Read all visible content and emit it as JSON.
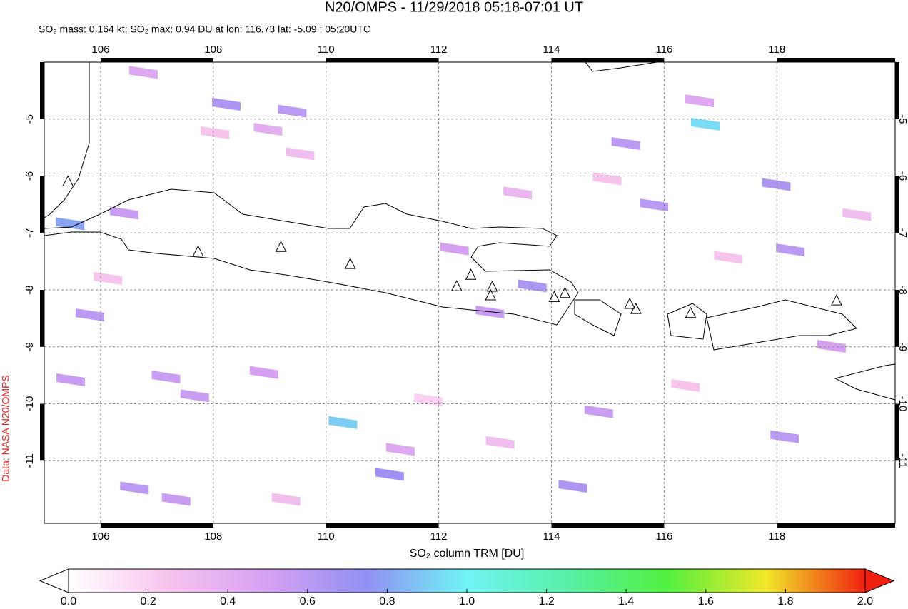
{
  "chart_data": {
    "type": "map",
    "title": "N20/OMPS - 11/29/2018 05:18-07:01 UT",
    "subtitle": "SO₂ mass: 0.164 kt; SO₂ max: 0.94 DU at lon: 116.73 lat: -5.09 ; 05:20UTC",
    "credit": "Data: NASA N20/OMPS",
    "xlim": [
      105,
      120.1
    ],
    "ylim": [
      -12.1,
      -4
    ],
    "xticks": [
      106,
      108,
      110,
      112,
      114,
      116,
      118
    ],
    "yticks": [
      -5,
      -6,
      -7,
      -8,
      -9,
      -10,
      -11
    ],
    "grid": true,
    "pixels": {
      "lon": [
        108.23,
        109.4,
        116.73,
        110.3,
        111.13,
        113.66,
        106.42,
        105.81,
        107.16,
        107.67,
        108.9,
        106.6,
        107.34,
        114.38,
        114.84,
        115.32,
        115.82,
        117.99,
        118.24,
        118.14,
        105.46,
        112.28,
        112.91,
        105.47,
        106.76,
        108.97,
        113.4,
        116.63,
        118.97,
        111.32,
        108.03,
        109.54,
        111.82,
        116.38,
        119.42,
        106.13,
        114.99,
        113.09,
        117.14,
        109.29
      ],
      "lat": [
        -4.74,
        -4.86,
        -5.09,
        -10.33,
        -11.24,
        -7.93,
        -6.65,
        -8.44,
        -9.53,
        -9.86,
        -9.45,
        -11.48,
        -11.68,
        -11.45,
        -10.14,
        -5.43,
        -6.51,
        -6.15,
        -7.3,
        -10.58,
        -6.84,
        -7.28,
        -8.39,
        -9.58,
        -4.18,
        -5.18,
        -6.3,
        -4.68,
        -8.99,
        -10.8,
        -5.24,
        -5.61,
        -9.93,
        -9.68,
        -6.68,
        -7.8,
        -6.05,
        -10.68,
        -7.43,
        -11.68
      ],
      "values": [
        0.65,
        0.6,
        0.94,
        0.9,
        0.7,
        0.65,
        0.55,
        0.6,
        0.55,
        0.55,
        0.5,
        0.6,
        0.55,
        0.65,
        0.55,
        0.6,
        0.6,
        0.65,
        0.6,
        0.6,
        0.8,
        0.5,
        0.55,
        0.55,
        0.45,
        0.4,
        0.35,
        0.45,
        0.5,
        0.45,
        0.25,
        0.3,
        0.2,
        0.25,
        0.3,
        0.25,
        0.25,
        0.3,
        0.25,
        0.3
      ]
    },
    "volcanoes": {
      "lon": [
        107.73,
        109.2,
        110.43,
        112.32,
        112.57,
        112.95,
        112.92,
        114.05,
        114.24,
        115.39,
        115.5,
        116.47,
        119.06,
        105.42
      ],
      "lat": [
        -7.33,
        -7.25,
        -7.55,
        -7.94,
        -7.74,
        -7.95,
        -8.1,
        -8.13,
        -8.06,
        -8.25,
        -8.34,
        -8.41,
        -8.19,
        -6.1
      ]
    },
    "colorbar": {
      "label": "SO₂ column TRM [DU]",
      "clim": [
        0,
        2
      ],
      "colormap": [
        "#ffffff",
        "#f7c4ee",
        "#d6a0f2",
        "#9090f2",
        "#70f4f4",
        "#58f0a8",
        "#50f040",
        "#f0e828",
        "#f02010"
      ],
      "ticks": [
        {
          "value": 0,
          "label": "0.0"
        },
        {
          "value": 0.2,
          "label": "0.2"
        },
        {
          "value": 0.4,
          "label": "0.4"
        },
        {
          "value": 0.6,
          "label": "0.6"
        },
        {
          "value": 0.8,
          "label": "0.8"
        },
        {
          "value": 1,
          "label": "1.0"
        },
        {
          "value": 1.2,
          "label": "1.2"
        },
        {
          "value": 1.4,
          "label": "1.4"
        },
        {
          "value": 1.6,
          "label": "1.6"
        },
        {
          "value": 1.8,
          "label": "1.8"
        },
        {
          "value": 2,
          "label": "2.0"
        }
      ]
    }
  }
}
